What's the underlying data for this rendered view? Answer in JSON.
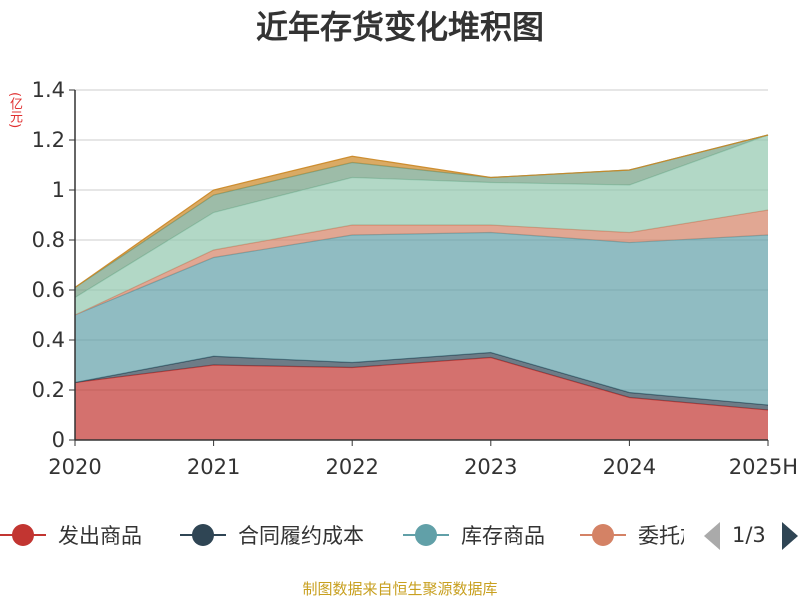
{
  "title": "近年存货变化堆积图",
  "unit": "(亿元)",
  "source": "制图数据来自恒生聚源数据库",
  "legend": {
    "items": [
      {
        "label": "发出商品",
        "color": "#c23531"
      },
      {
        "label": "合同履约成本",
        "color": "#2f4554"
      },
      {
        "label": "库存商品",
        "color": "#61a0a8"
      },
      {
        "label": "委托加工物资",
        "color": "#d48265"
      }
    ],
    "page": "1/3"
  },
  "chart_data": {
    "type": "area",
    "stacked": true,
    "title": "近年存货变化堆积图",
    "ylabel": "(亿元)",
    "ylim": [
      0,
      1.4
    ],
    "yticks": [
      "0",
      "0.2",
      "0.4",
      "0.6",
      "0.8",
      "1",
      "1.2",
      "1.4"
    ],
    "grid": true,
    "legend_position": "bottom",
    "categories": [
      "2020",
      "2021",
      "2022",
      "2023",
      "2024",
      "2025H"
    ],
    "series": [
      {
        "name": "发出商品",
        "color": "#c23531",
        "values": [
          0.23,
          0.3,
          0.29,
          0.33,
          0.17,
          0.12
        ]
      },
      {
        "name": "合同履约成本",
        "color": "#2f4554",
        "values": [
          0.0,
          0.035,
          0.02,
          0.02,
          0.02,
          0.02
        ]
      },
      {
        "name": "库存商品",
        "color": "#61a0a8",
        "values": [
          0.27,
          0.395,
          0.51,
          0.48,
          0.6,
          0.68
        ]
      },
      {
        "name": "委托加工物资",
        "color": "#d48265",
        "values": [
          0.0,
          0.03,
          0.04,
          0.03,
          0.04,
          0.1
        ]
      },
      {
        "color": "#91c7ae",
        "values": [
          0.07,
          0.15,
          0.19,
          0.17,
          0.19,
          0.3
        ]
      },
      {
        "color": "#749f83",
        "values": [
          0.04,
          0.07,
          0.06,
          0.02,
          0.06,
          0.0
        ]
      },
      {
        "color": "#ca8622",
        "values": [
          0.0,
          0.02,
          0.025,
          0.0,
          0.0,
          0.0
        ]
      }
    ]
  }
}
